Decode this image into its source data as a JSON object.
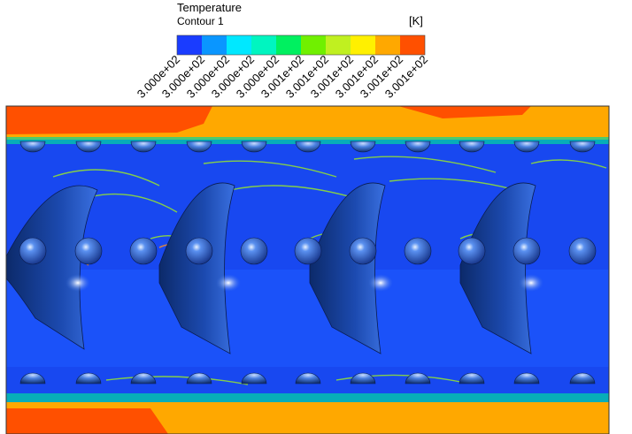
{
  "legend": {
    "title": "Temperature",
    "subtitle": "Contour 1",
    "unit": "[K]",
    "labels": [
      "3.000e+02",
      "3.000e+02",
      "3.000e+02",
      "3.000e+02",
      "3.000e+02",
      "3.001e+02",
      "3.001e+02",
      "3.001e+02",
      "3.001e+02",
      "3.001e+02",
      "3.001e+02"
    ]
  }
}
